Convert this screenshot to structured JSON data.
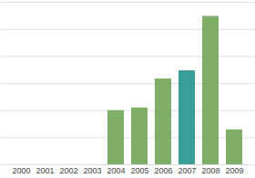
{
  "chart_data": {
    "type": "bar",
    "categories": [
      "2000",
      "2001",
      "2002",
      "2003",
      "2004",
      "2005",
      "2006",
      "2007",
      "2008",
      "2009"
    ],
    "values": [
      null,
      null,
      null,
      null,
      2.0,
      2.1,
      3.17,
      3.47,
      5.48,
      1.29
    ],
    "colors": [
      "#7fae69",
      "#7fae69",
      "#7fae69",
      "#7fae69",
      "#7fae69",
      "#7fae69",
      "#7fae69",
      "#3a9e96",
      "#7fae69",
      "#7fae69"
    ],
    "ylim": [
      0,
      6
    ],
    "yticks": [
      0,
      1,
      2,
      3,
      4,
      5,
      6
    ],
    "grid": true,
    "tick_labels": "x"
  }
}
